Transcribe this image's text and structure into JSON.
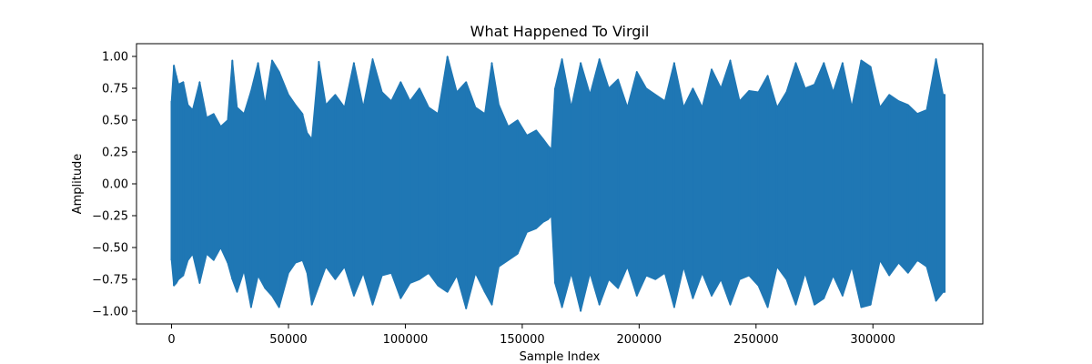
{
  "chart_data": {
    "type": "line",
    "title": "What Happened To Virgil",
    "xlabel": "Sample Index",
    "ylabel": "Amplitude",
    "xlim": [
      -15000,
      347000
    ],
    "ylim": [
      -1.1,
      1.1
    ],
    "xticks": [
      0,
      50000,
      100000,
      150000,
      200000,
      250000,
      300000
    ],
    "yticks": [
      -1.0,
      -0.75,
      -0.5,
      -0.25,
      0.0,
      0.25,
      0.5,
      0.75,
      1.0
    ],
    "grid": false,
    "series": [
      {
        "color": "#1f77b4",
        "sample_count": 330750,
        "envelope": {
          "x": [
            0,
            1000,
            2000,
            3000,
            5000,
            7000,
            9000,
            12000,
            15000,
            18000,
            21000,
            24000,
            26000,
            28000,
            31000,
            34000,
            37000,
            40000,
            43000,
            46000,
            50000,
            53000,
            56000,
            58000,
            60000,
            63000,
            66000,
            70000,
            74000,
            78000,
            82000,
            86000,
            90000,
            94000,
            98000,
            102000,
            106000,
            110000,
            114000,
            118000,
            122000,
            126000,
            130000,
            134000,
            137000,
            140000,
            144000,
            148000,
            152000,
            156000,
            159000,
            161000,
            162500,
            164000,
            167000,
            171000,
            175000,
            179000,
            183000,
            187000,
            191000,
            195000,
            199000,
            203000,
            207000,
            211000,
            215000,
            219000,
            223000,
            227000,
            231000,
            235000,
            239000,
            243000,
            247000,
            251000,
            255000,
            259000,
            263000,
            267000,
            271000,
            275000,
            279000,
            283000,
            287000,
            291000,
            295000,
            299000,
            303000,
            307000,
            311000,
            315000,
            319000,
            323000,
            327000,
            330000
          ],
          "max": [
            0.65,
            0.93,
            0.85,
            0.78,
            0.8,
            0.62,
            0.58,
            0.8,
            0.52,
            0.55,
            0.45,
            0.5,
            0.97,
            0.6,
            0.55,
            0.73,
            0.95,
            0.62,
            0.97,
            0.88,
            0.7,
            0.62,
            0.55,
            0.4,
            0.35,
            0.96,
            0.62,
            0.7,
            0.6,
            0.95,
            0.6,
            0.98,
            0.72,
            0.65,
            0.8,
            0.65,
            0.75,
            0.6,
            0.55,
            1.0,
            0.72,
            0.8,
            0.6,
            0.55,
            0.95,
            0.62,
            0.45,
            0.5,
            0.38,
            0.42,
            0.35,
            0.3,
            0.27,
            0.75,
            0.98,
            0.6,
            0.95,
            0.7,
            0.98,
            0.75,
            0.82,
            0.6,
            0.88,
            0.75,
            0.7,
            0.65,
            0.95,
            0.6,
            0.75,
            0.6,
            0.9,
            0.75,
            0.97,
            0.65,
            0.73,
            0.72,
            0.85,
            0.6,
            0.72,
            0.95,
            0.75,
            0.78,
            0.95,
            0.72,
            0.95,
            0.6,
            0.97,
            0.92,
            0.6,
            0.7,
            0.65,
            0.62,
            0.55,
            0.58,
            0.98,
            0.7
          ],
          "min": [
            -0.6,
            -0.8,
            -0.78,
            -0.75,
            -0.72,
            -0.6,
            -0.55,
            -0.78,
            -0.55,
            -0.6,
            -0.5,
            -0.62,
            -0.75,
            -0.85,
            -0.68,
            -0.97,
            -0.72,
            -0.82,
            -0.88,
            -0.97,
            -0.7,
            -0.62,
            -0.6,
            -0.7,
            -0.95,
            -0.8,
            -0.65,
            -0.75,
            -0.65,
            -0.88,
            -0.7,
            -0.95,
            -0.72,
            -0.7,
            -0.9,
            -0.78,
            -0.75,
            -0.7,
            -0.8,
            -0.85,
            -0.72,
            -0.98,
            -0.7,
            -0.85,
            -0.95,
            -0.65,
            -0.6,
            -0.55,
            -0.38,
            -0.35,
            -0.3,
            -0.28,
            -0.25,
            -0.78,
            -0.97,
            -0.7,
            -1.0,
            -0.7,
            -0.95,
            -0.75,
            -0.82,
            -0.65,
            -0.88,
            -0.72,
            -0.75,
            -0.7,
            -0.97,
            -0.65,
            -0.9,
            -0.7,
            -0.88,
            -0.75,
            -0.95,
            -0.75,
            -0.72,
            -0.8,
            -0.97,
            -0.65,
            -0.75,
            -0.95,
            -0.7,
            -0.95,
            -0.9,
            -0.72,
            -0.88,
            -0.65,
            -0.97,
            -0.95,
            -0.6,
            -0.72,
            -0.62,
            -0.7,
            -0.6,
            -0.65,
            -0.92,
            -0.85
          ]
        }
      }
    ]
  }
}
